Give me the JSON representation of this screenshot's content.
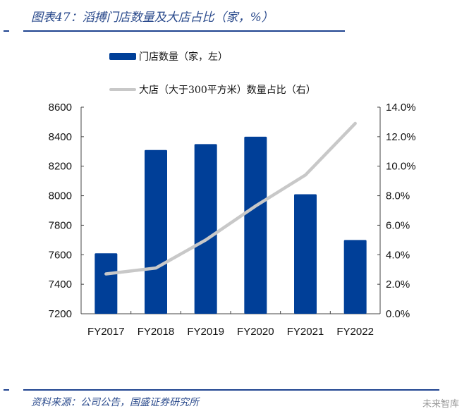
{
  "title": "图表47：滔搏门店数量及大店占比（家，%）",
  "source": "资料来源：公司公告，国盛证券研究所",
  "watermark": "未来智库",
  "chart_data": {
    "type": "bar+line",
    "categories": [
      "FY2017",
      "FY2018",
      "FY2019",
      "FY2020",
      "FY2021",
      "FY2022"
    ],
    "series": [
      {
        "name": "门店数量（家，左）",
        "type": "bar",
        "axis": "left",
        "color": "#003f98",
        "values": [
          7610,
          8310,
          8350,
          8400,
          8010,
          7700
        ]
      },
      {
        "name": "大店（大于300平方米）数量占比（右）",
        "type": "line",
        "axis": "right",
        "color": "#c8c8c8",
        "values": [
          2.7,
          3.1,
          5.0,
          7.3,
          9.4,
          12.9
        ]
      }
    ],
    "ylim_left": [
      7200,
      8600
    ],
    "yticks_left": [
      "7200",
      "7400",
      "7600",
      "7800",
      "8000",
      "8200",
      "8400",
      "8600"
    ],
    "ylim_right": [
      0,
      14
    ],
    "yticks_right": [
      "0.0%",
      "2.0%",
      "4.0%",
      "6.0%",
      "8.0%",
      "10.0%",
      "12.0%",
      "14.0%"
    ],
    "grid": false,
    "legend_position": "top"
  }
}
